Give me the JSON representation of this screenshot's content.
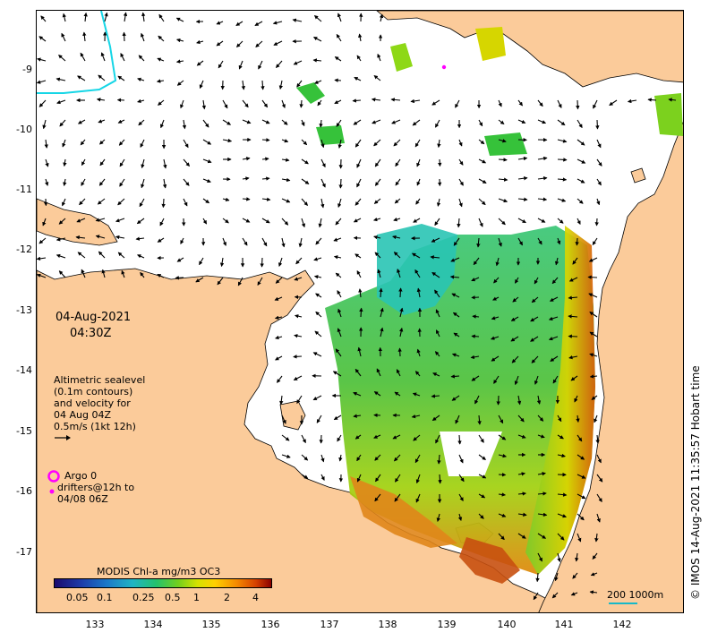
{
  "map": {
    "lat_ticks": [
      "-9",
      "-10",
      "-11",
      "-12",
      "-13",
      "-14",
      "-15",
      "-16",
      "-17"
    ],
    "lon_ticks": [
      "133",
      "134",
      "135",
      "136",
      "137",
      "138",
      "139",
      "140",
      "141",
      "142"
    ],
    "colors": {
      "land": "#fbcb9a",
      "ocean": "#ffffff",
      "coastline": "#000000",
      "contour": "#16d6e6",
      "arrow": "#000000",
      "argo_marker": "#ff00ff"
    }
  },
  "labels": {
    "date": "04-Aug-2021",
    "time": "04:30Z",
    "altimetry_line1": "Altimetric sealevel",
    "altimetry_line2": "(0.1m contours)",
    "altimetry_line3": "and velocity for",
    "altimetry_line4": "04 Aug 04Z",
    "altimetry_line5": "0.5m/s (1kt 12h)",
    "argo_line1": "Argo 0",
    "argo_line2": "drifters@12h to",
    "argo_line3": "04/08 06Z"
  },
  "colorbar": {
    "title": "MODIS Chl-a mg/m3 OC3",
    "ticks": [
      "0.05",
      "0.1",
      "0.25",
      "0.5",
      "1",
      "2",
      "4"
    ]
  },
  "scale": {
    "label": "200  1000m"
  },
  "copyright": "© IMOS 14-Aug-2021 11:35:57 Hobart time"
}
